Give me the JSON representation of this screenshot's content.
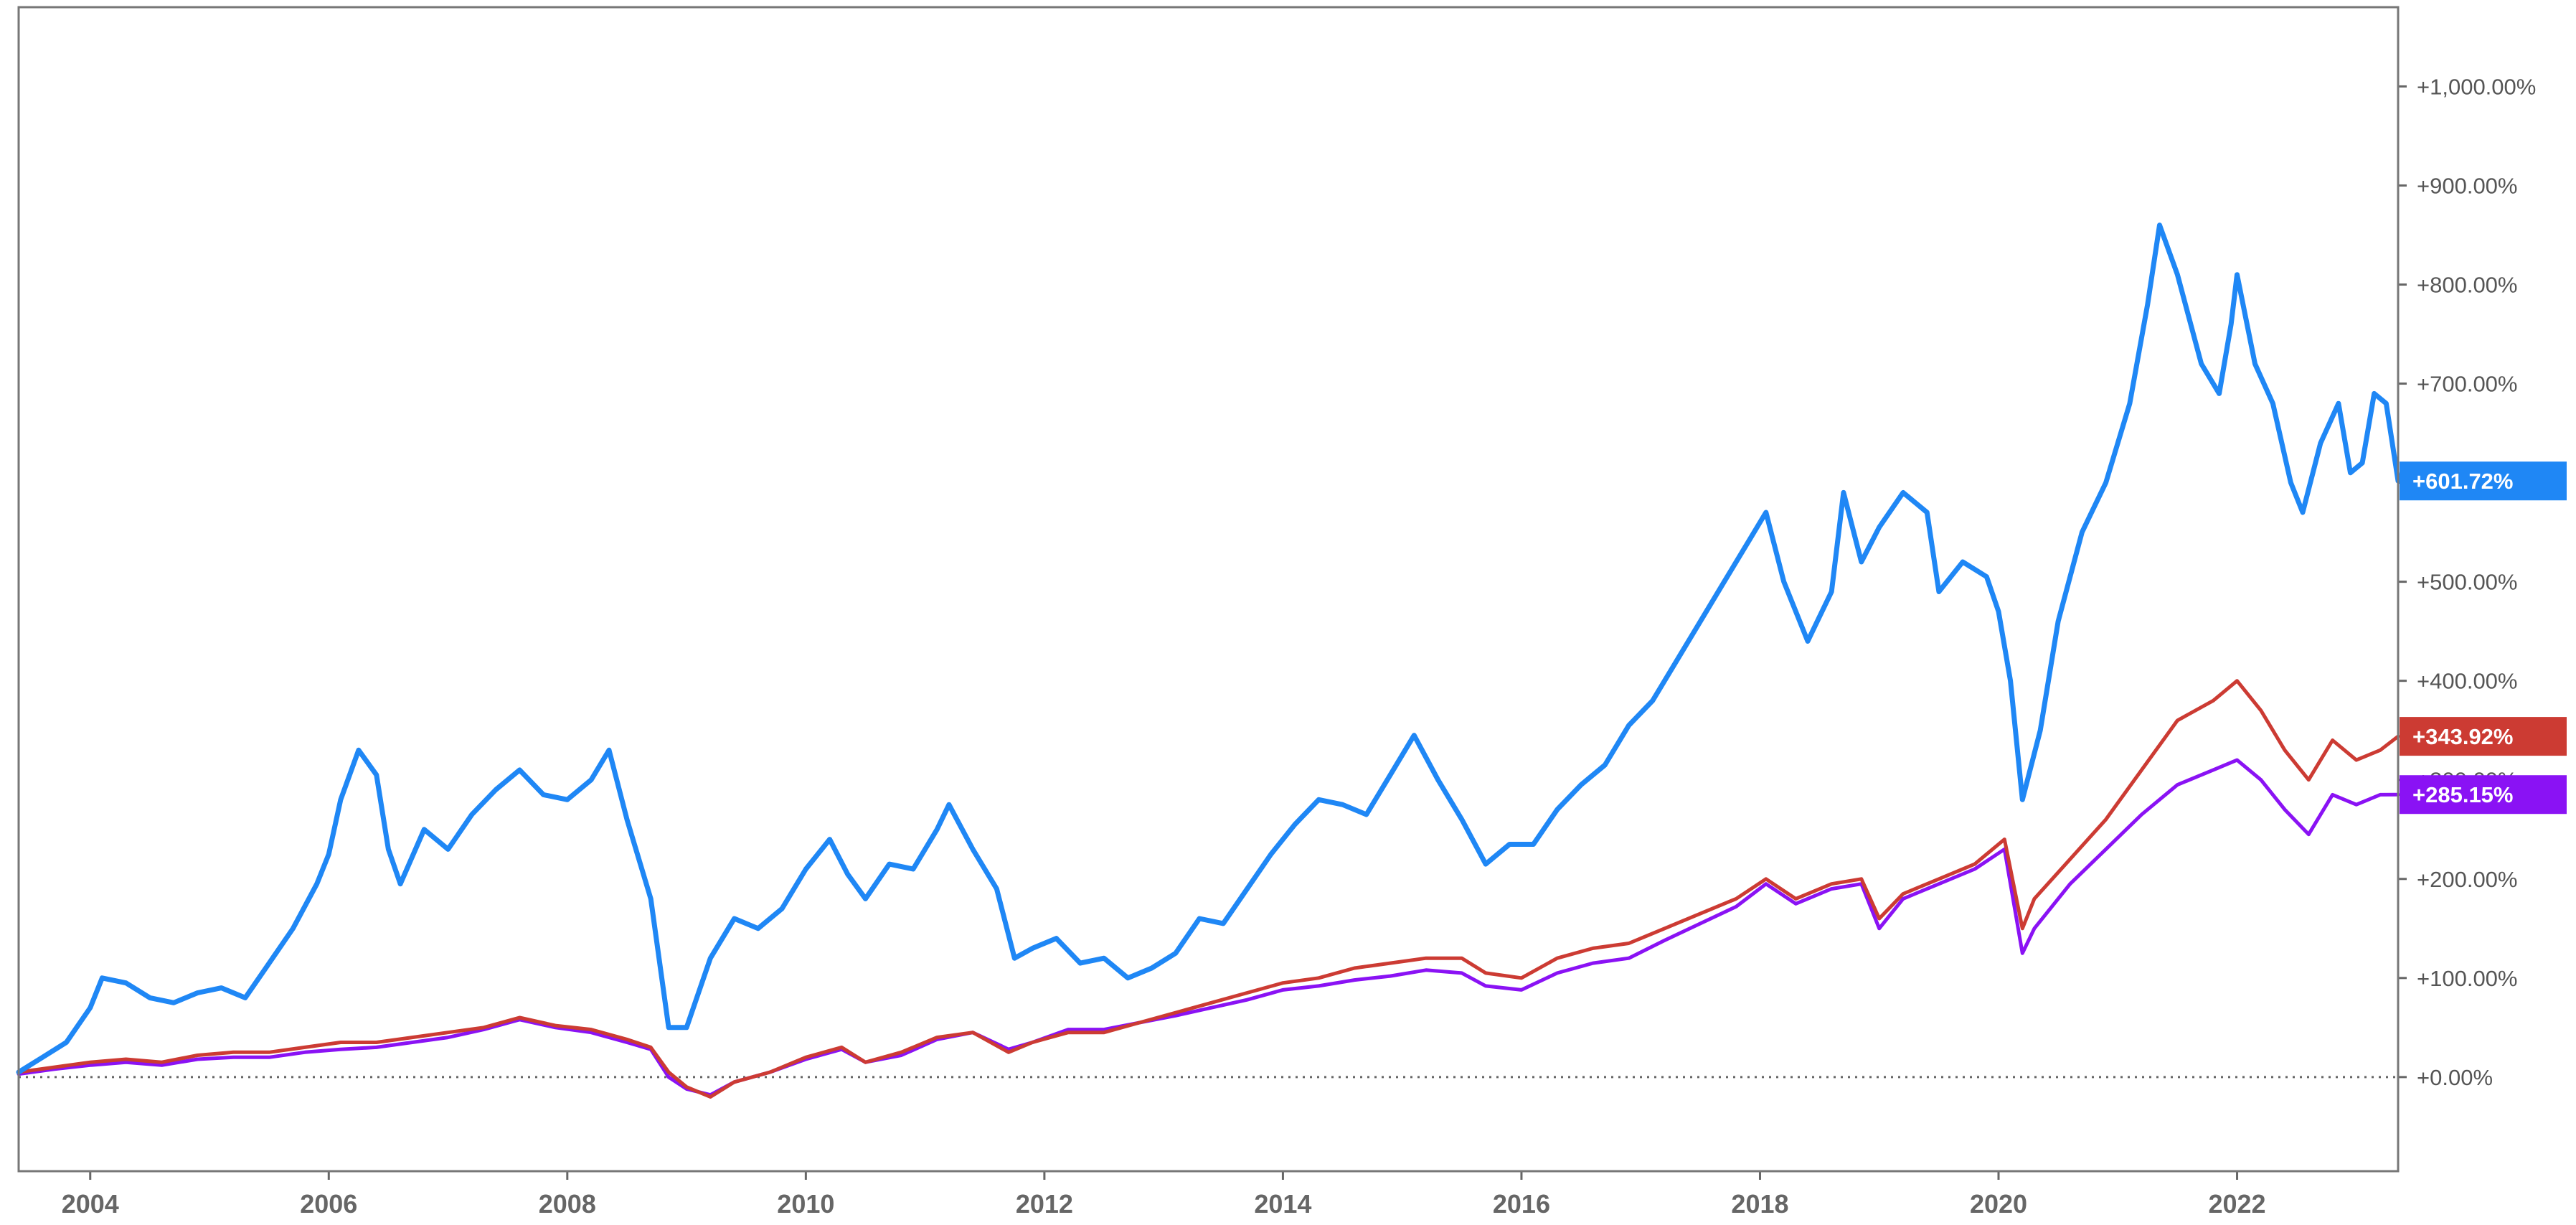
{
  "chart_data": {
    "type": "line",
    "title": "",
    "xlabel": "",
    "ylabel": "",
    "x_ticks": [
      "2004",
      "2006",
      "2008",
      "2010",
      "2012",
      "2014",
      "2016",
      "2018",
      "2020",
      "2022"
    ],
    "y_ticks": [
      "+0.00%",
      "+100.00%",
      "+200.00%",
      "+300.00%",
      "+400.00%",
      "+500.00%",
      "+600.00%",
      "+700.00%",
      "+800.00%",
      "+900.00%",
      "+1,000.00%"
    ],
    "y_tick_values": [
      0,
      100,
      200,
      300,
      400,
      500,
      600,
      700,
      800,
      900,
      1000
    ],
    "xlim": [
      2003.4,
      2023.35
    ],
    "ylim": [
      -95,
      1080
    ],
    "grid": false,
    "baseline": 0,
    "series": [
      {
        "color": "#1f87f5",
        "end_label": "+601.72%",
        "points": [
          [
            2003.4,
            5
          ],
          [
            2003.6,
            20
          ],
          [
            2003.8,
            35
          ],
          [
            2004.0,
            70
          ],
          [
            2004.1,
            100
          ],
          [
            2004.3,
            95
          ],
          [
            2004.5,
            80
          ],
          [
            2004.7,
            75
          ],
          [
            2004.9,
            85
          ],
          [
            2005.1,
            90
          ],
          [
            2005.3,
            80
          ],
          [
            2005.5,
            115
          ],
          [
            2005.7,
            150
          ],
          [
            2005.9,
            195
          ],
          [
            2006.0,
            225
          ],
          [
            2006.1,
            280
          ],
          [
            2006.25,
            330
          ],
          [
            2006.4,
            305
          ],
          [
            2006.5,
            230
          ],
          [
            2006.6,
            195
          ],
          [
            2006.8,
            250
          ],
          [
            2007.0,
            230
          ],
          [
            2007.2,
            265
          ],
          [
            2007.4,
            290
          ],
          [
            2007.6,
            310
          ],
          [
            2007.8,
            285
          ],
          [
            2008.0,
            280
          ],
          [
            2008.2,
            300
          ],
          [
            2008.35,
            330
          ],
          [
            2008.5,
            260
          ],
          [
            2008.7,
            180
          ],
          [
            2008.85,
            50
          ],
          [
            2009.0,
            50
          ],
          [
            2009.2,
            120
          ],
          [
            2009.4,
            160
          ],
          [
            2009.6,
            150
          ],
          [
            2009.8,
            170
          ],
          [
            2010.0,
            210
          ],
          [
            2010.2,
            240
          ],
          [
            2010.35,
            205
          ],
          [
            2010.5,
            180
          ],
          [
            2010.7,
            215
          ],
          [
            2010.9,
            210
          ],
          [
            2011.1,
            250
          ],
          [
            2011.2,
            275
          ],
          [
            2011.4,
            230
          ],
          [
            2011.6,
            190
          ],
          [
            2011.75,
            120
          ],
          [
            2011.9,
            130
          ],
          [
            2012.1,
            140
          ],
          [
            2012.3,
            115
          ],
          [
            2012.5,
            120
          ],
          [
            2012.7,
            100
          ],
          [
            2012.9,
            110
          ],
          [
            2013.1,
            125
          ],
          [
            2013.3,
            160
          ],
          [
            2013.5,
            155
          ],
          [
            2013.7,
            190
          ],
          [
            2013.9,
            225
          ],
          [
            2014.1,
            255
          ],
          [
            2014.3,
            280
          ],
          [
            2014.5,
            275
          ],
          [
            2014.7,
            265
          ],
          [
            2014.9,
            305
          ],
          [
            2015.1,
            345
          ],
          [
            2015.3,
            300
          ],
          [
            2015.5,
            260
          ],
          [
            2015.7,
            215
          ],
          [
            2015.9,
            235
          ],
          [
            2016.1,
            235
          ],
          [
            2016.3,
            270
          ],
          [
            2016.5,
            295
          ],
          [
            2016.7,
            315
          ],
          [
            2016.9,
            355
          ],
          [
            2017.1,
            380
          ],
          [
            2017.3,
            420
          ],
          [
            2017.5,
            460
          ],
          [
            2017.7,
            500
          ],
          [
            2017.9,
            540
          ],
          [
            2018.05,
            570
          ],
          [
            2018.2,
            500
          ],
          [
            2018.4,
            440
          ],
          [
            2018.6,
            490
          ],
          [
            2018.7,
            590
          ],
          [
            2018.85,
            520
          ],
          [
            2019.0,
            555
          ],
          [
            2019.2,
            590
          ],
          [
            2019.4,
            570
          ],
          [
            2019.5,
            490
          ],
          [
            2019.7,
            520
          ],
          [
            2019.9,
            505
          ],
          [
            2020.0,
            470
          ],
          [
            2020.1,
            400
          ],
          [
            2020.2,
            280
          ],
          [
            2020.35,
            350
          ],
          [
            2020.5,
            460
          ],
          [
            2020.7,
            550
          ],
          [
            2020.9,
            600
          ],
          [
            2021.1,
            680
          ],
          [
            2021.25,
            780
          ],
          [
            2021.35,
            860
          ],
          [
            2021.5,
            810
          ],
          [
            2021.7,
            720
          ],
          [
            2021.85,
            690
          ],
          [
            2021.95,
            760
          ],
          [
            2022.0,
            810
          ],
          [
            2022.15,
            720
          ],
          [
            2022.3,
            680
          ],
          [
            2022.45,
            600
          ],
          [
            2022.55,
            570
          ],
          [
            2022.7,
            640
          ],
          [
            2022.85,
            680
          ],
          [
            2022.95,
            610
          ],
          [
            2023.05,
            620
          ],
          [
            2023.15,
            690
          ],
          [
            2023.25,
            680
          ],
          [
            2023.35,
            601.72
          ]
        ]
      },
      {
        "color": "#cc3b33",
        "end_label": "+343.92%",
        "points": [
          [
            2003.4,
            5
          ],
          [
            2003.7,
            10
          ],
          [
            2004.0,
            15
          ],
          [
            2004.3,
            18
          ],
          [
            2004.6,
            15
          ],
          [
            2004.9,
            22
          ],
          [
            2005.2,
            25
          ],
          [
            2005.5,
            25
          ],
          [
            2005.8,
            30
          ],
          [
            2006.1,
            35
          ],
          [
            2006.4,
            35
          ],
          [
            2006.7,
            40
          ],
          [
            2007.0,
            45
          ],
          [
            2007.3,
            50
          ],
          [
            2007.6,
            60
          ],
          [
            2007.9,
            52
          ],
          [
            2008.2,
            48
          ],
          [
            2008.5,
            38
          ],
          [
            2008.7,
            30
          ],
          [
            2008.85,
            5
          ],
          [
            2009.0,
            -10
          ],
          [
            2009.2,
            -20
          ],
          [
            2009.4,
            -5
          ],
          [
            2009.7,
            5
          ],
          [
            2010.0,
            20
          ],
          [
            2010.3,
            30
          ],
          [
            2010.5,
            15
          ],
          [
            2010.8,
            25
          ],
          [
            2011.1,
            40
          ],
          [
            2011.4,
            45
          ],
          [
            2011.7,
            25
          ],
          [
            2011.9,
            35
          ],
          [
            2012.2,
            45
          ],
          [
            2012.5,
            45
          ],
          [
            2012.8,
            55
          ],
          [
            2013.1,
            65
          ],
          [
            2013.4,
            75
          ],
          [
            2013.7,
            85
          ],
          [
            2014.0,
            95
          ],
          [
            2014.3,
            100
          ],
          [
            2014.6,
            110
          ],
          [
            2014.9,
            115
          ],
          [
            2015.2,
            120
          ],
          [
            2015.5,
            120
          ],
          [
            2015.7,
            105
          ],
          [
            2016.0,
            100
          ],
          [
            2016.3,
            120
          ],
          [
            2016.6,
            130
          ],
          [
            2016.9,
            135
          ],
          [
            2017.2,
            150
          ],
          [
            2017.5,
            165
          ],
          [
            2017.8,
            180
          ],
          [
            2018.05,
            200
          ],
          [
            2018.3,
            180
          ],
          [
            2018.6,
            195
          ],
          [
            2018.85,
            200
          ],
          [
            2019.0,
            160
          ],
          [
            2019.2,
            185
          ],
          [
            2019.5,
            200
          ],
          [
            2019.8,
            215
          ],
          [
            2020.05,
            240
          ],
          [
            2020.2,
            150
          ],
          [
            2020.3,
            180
          ],
          [
            2020.6,
            220
          ],
          [
            2020.9,
            260
          ],
          [
            2021.2,
            310
          ],
          [
            2021.5,
            360
          ],
          [
            2021.8,
            380
          ],
          [
            2022.0,
            400
          ],
          [
            2022.2,
            370
          ],
          [
            2022.4,
            330
          ],
          [
            2022.6,
            300
          ],
          [
            2022.8,
            340
          ],
          [
            2023.0,
            320
          ],
          [
            2023.2,
            330
          ],
          [
            2023.35,
            343.92
          ]
        ]
      },
      {
        "color": "#8a12f4",
        "end_label": "+285.15%",
        "points": [
          [
            2003.4,
            3
          ],
          [
            2003.7,
            8
          ],
          [
            2004.0,
            12
          ],
          [
            2004.3,
            15
          ],
          [
            2004.6,
            12
          ],
          [
            2004.9,
            18
          ],
          [
            2005.2,
            20
          ],
          [
            2005.5,
            20
          ],
          [
            2005.8,
            25
          ],
          [
            2006.1,
            28
          ],
          [
            2006.4,
            30
          ],
          [
            2006.7,
            35
          ],
          [
            2007.0,
            40
          ],
          [
            2007.3,
            48
          ],
          [
            2007.6,
            58
          ],
          [
            2007.9,
            50
          ],
          [
            2008.2,
            45
          ],
          [
            2008.5,
            35
          ],
          [
            2008.7,
            28
          ],
          [
            2008.85,
            0
          ],
          [
            2009.0,
            -12
          ],
          [
            2009.2,
            -18
          ],
          [
            2009.4,
            -5
          ],
          [
            2009.7,
            5
          ],
          [
            2010.0,
            18
          ],
          [
            2010.3,
            28
          ],
          [
            2010.5,
            15
          ],
          [
            2010.8,
            22
          ],
          [
            2011.1,
            38
          ],
          [
            2011.4,
            45
          ],
          [
            2011.7,
            28
          ],
          [
            2011.9,
            35
          ],
          [
            2012.2,
            48
          ],
          [
            2012.5,
            48
          ],
          [
            2012.8,
            55
          ],
          [
            2013.1,
            62
          ],
          [
            2013.4,
            70
          ],
          [
            2013.7,
            78
          ],
          [
            2014.0,
            88
          ],
          [
            2014.3,
            92
          ],
          [
            2014.6,
            98
          ],
          [
            2014.9,
            102
          ],
          [
            2015.2,
            108
          ],
          [
            2015.5,
            105
          ],
          [
            2015.7,
            92
          ],
          [
            2016.0,
            88
          ],
          [
            2016.3,
            105
          ],
          [
            2016.6,
            115
          ],
          [
            2016.9,
            120
          ],
          [
            2017.2,
            138
          ],
          [
            2017.5,
            155
          ],
          [
            2017.8,
            172
          ],
          [
            2018.05,
            195
          ],
          [
            2018.3,
            175
          ],
          [
            2018.6,
            190
          ],
          [
            2018.85,
            195
          ],
          [
            2019.0,
            150
          ],
          [
            2019.2,
            180
          ],
          [
            2019.5,
            195
          ],
          [
            2019.8,
            210
          ],
          [
            2020.05,
            230
          ],
          [
            2020.2,
            125
          ],
          [
            2020.3,
            150
          ],
          [
            2020.6,
            195
          ],
          [
            2020.9,
            230
          ],
          [
            2021.2,
            265
          ],
          [
            2021.5,
            295
          ],
          [
            2021.8,
            310
          ],
          [
            2022.0,
            320
          ],
          [
            2022.2,
            300
          ],
          [
            2022.4,
            270
          ],
          [
            2022.6,
            245
          ],
          [
            2022.8,
            285
          ],
          [
            2023.0,
            275
          ],
          [
            2023.2,
            285
          ],
          [
            2023.35,
            285.15
          ]
        ]
      }
    ]
  }
}
